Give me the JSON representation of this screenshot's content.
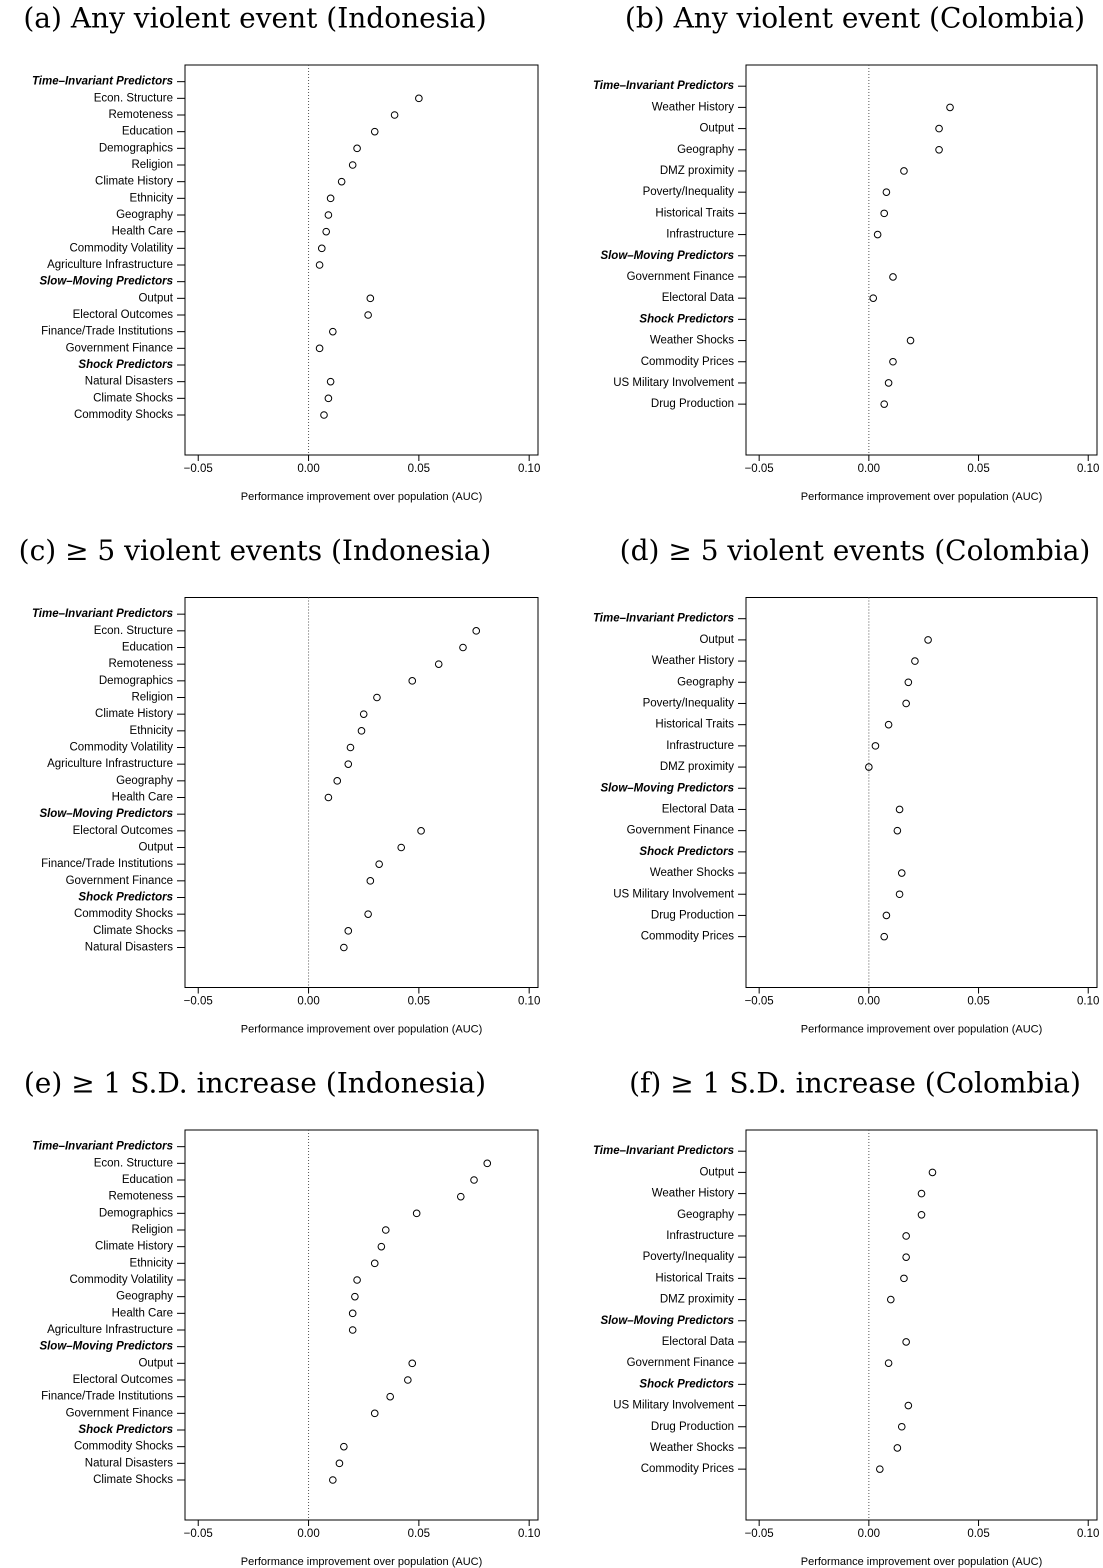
{
  "chart_data": [
    {
      "type": "dot",
      "title": "(a) Any violent event (Indonesia)",
      "xlabel": "Performance improvement over population (AUC)",
      "xlim": [
        -0.056,
        0.104
      ],
      "xticks": [
        {
          "value": -0.05,
          "label": "−0.05"
        },
        {
          "value": 0,
          "label": "0.00"
        },
        {
          "value": 0.05,
          "label": "0.05"
        },
        {
          "value": 0.1,
          "label": "0.10"
        }
      ],
      "groups": [
        {
          "name": "Time–Invariant Predictors",
          "categories": [
            "Econ. Structure",
            "Remoteness",
            "Education",
            "Demographics",
            "Religion",
            "Climate History",
            "Ethnicity",
            "Geography",
            "Health Care",
            "Commodity Volatility",
            "Agriculture Infrastructure"
          ],
          "values": [
            0.05,
            0.039,
            0.03,
            0.022,
            0.02,
            0.015,
            0.01,
            0.009,
            0.008,
            0.006,
            0.005
          ]
        },
        {
          "name": "Slow–Moving Predictors",
          "categories": [
            "Output",
            "Electoral Outcomes",
            "Finance/Trade Institutions",
            "Government Finance"
          ],
          "values": [
            0.028,
            0.027,
            0.011,
            0.005
          ]
        },
        {
          "name": "Shock Predictors",
          "categories": [
            "Natural Disasters",
            "Climate Shocks",
            "Commodity Shocks"
          ],
          "values": [
            0.01,
            0.009,
            0.007
          ]
        }
      ]
    },
    {
      "type": "dot",
      "title": "(b) Any violent event (Colombia)",
      "xlabel": "Performance improvement over population (AUC)",
      "xlim": [
        -0.056,
        0.104
      ],
      "xticks": [
        {
          "value": -0.05,
          "label": "−0.05"
        },
        {
          "value": 0,
          "label": "0.00"
        },
        {
          "value": 0.05,
          "label": "0.05"
        },
        {
          "value": 0.1,
          "label": "0.10"
        }
      ],
      "groups": [
        {
          "name": "Time–Invariant Predictors",
          "categories": [
            "Weather History",
            "Output",
            "Geography",
            "DMZ proximity",
            "Poverty/Inequality",
            "Historical Traits",
            "Infrastructure"
          ],
          "values": [
            0.037,
            0.032,
            0.032,
            0.016,
            0.008,
            0.007,
            0.004
          ]
        },
        {
          "name": "Slow–Moving Predictors",
          "categories": [
            "Government Finance",
            "Electoral Data"
          ],
          "values": [
            0.011,
            0.002
          ]
        },
        {
          "name": "Shock Predictors",
          "categories": [
            "Weather Shocks",
            "Commodity Prices",
            "US Military Involvement",
            "Drug Production"
          ],
          "values": [
            0.019,
            0.011,
            0.009,
            0.007
          ]
        }
      ]
    },
    {
      "type": "dot",
      "title": "(c) ≥ 5 violent events (Indonesia)",
      "xlabel": "Performance improvement over population (AUC)",
      "xlim": [
        -0.056,
        0.104
      ],
      "xticks": [
        {
          "value": -0.05,
          "label": "−0.05"
        },
        {
          "value": 0,
          "label": "0.00"
        },
        {
          "value": 0.05,
          "label": "0.05"
        },
        {
          "value": 0.1,
          "label": "0.10"
        }
      ],
      "groups": [
        {
          "name": "Time–Invariant Predictors",
          "categories": [
            "Econ. Structure",
            "Education",
            "Remoteness",
            "Demographics",
            "Religion",
            "Climate History",
            "Ethnicity",
            "Commodity Volatility",
            "Agriculture Infrastructure",
            "Geography",
            "Health Care"
          ],
          "values": [
            0.076,
            0.07,
            0.059,
            0.047,
            0.031,
            0.025,
            0.024,
            0.019,
            0.018,
            0.013,
            0.009
          ]
        },
        {
          "name": "Slow–Moving Predictors",
          "categories": [
            "Electoral Outcomes",
            "Output",
            "Finance/Trade Institutions",
            "Government Finance"
          ],
          "values": [
            0.051,
            0.042,
            0.032,
            0.028
          ]
        },
        {
          "name": "Shock Predictors",
          "categories": [
            "Commodity Shocks",
            "Climate Shocks",
            "Natural Disasters"
          ],
          "values": [
            0.027,
            0.018,
            0.016
          ]
        }
      ]
    },
    {
      "type": "dot",
      "title": "(d) ≥ 5 violent events (Colombia)",
      "xlabel": "Performance improvement over population (AUC)",
      "xlim": [
        -0.056,
        0.104
      ],
      "xticks": [
        {
          "value": -0.05,
          "label": "−0.05"
        },
        {
          "value": 0,
          "label": "0.00"
        },
        {
          "value": 0.05,
          "label": "0.05"
        },
        {
          "value": 0.1,
          "label": "0.10"
        }
      ],
      "groups": [
        {
          "name": "Time–Invariant Predictors",
          "categories": [
            "Output",
            "Weather History",
            "Geography",
            "Poverty/Inequality",
            "Historical Traits",
            "Infrastructure",
            "DMZ proximity"
          ],
          "values": [
            0.027,
            0.021,
            0.018,
            0.017,
            0.009,
            0.003,
            0.0
          ]
        },
        {
          "name": "Slow–Moving Predictors",
          "categories": [
            "Electoral Data",
            "Government Finance"
          ],
          "values": [
            0.014,
            0.013
          ]
        },
        {
          "name": "Shock Predictors",
          "categories": [
            "Weather Shocks",
            "US Military Involvement",
            "Drug Production",
            "Commodity Prices"
          ],
          "values": [
            0.015,
            0.014,
            0.008,
            0.007
          ]
        }
      ]
    },
    {
      "type": "dot",
      "title": "(e) ≥ 1 S.D. increase (Indonesia)",
      "xlabel": "Performance improvement over population (AUC)",
      "xlim": [
        -0.056,
        0.104
      ],
      "xticks": [
        {
          "value": -0.05,
          "label": "−0.05"
        },
        {
          "value": 0,
          "label": "0.00"
        },
        {
          "value": 0.05,
          "label": "0.05"
        },
        {
          "value": 0.1,
          "label": "0.10"
        }
      ],
      "groups": [
        {
          "name": "Time–Invariant Predictors",
          "categories": [
            "Econ. Structure",
            "Education",
            "Remoteness",
            "Demographics",
            "Religion",
            "Climate History",
            "Ethnicity",
            "Commodity Volatility",
            "Geography",
            "Health Care",
            "Agriculture Infrastructure"
          ],
          "values": [
            0.081,
            0.075,
            0.069,
            0.049,
            0.035,
            0.033,
            0.03,
            0.022,
            0.021,
            0.02,
            0.02
          ]
        },
        {
          "name": "Slow–Moving Predictors",
          "categories": [
            "Output",
            "Electoral Outcomes",
            "Finance/Trade Institutions",
            "Government Finance"
          ],
          "values": [
            0.047,
            0.045,
            0.037,
            0.03
          ]
        },
        {
          "name": "Shock Predictors",
          "categories": [
            "Commodity Shocks",
            "Natural Disasters",
            "Climate Shocks"
          ],
          "values": [
            0.016,
            0.014,
            0.011
          ]
        }
      ]
    },
    {
      "type": "dot",
      "title": "(f) ≥ 1 S.D. increase (Colombia)",
      "xlabel": "Performance improvement over population (AUC)",
      "xlim": [
        -0.056,
        0.104
      ],
      "xticks": [
        {
          "value": -0.05,
          "label": "−0.05"
        },
        {
          "value": 0,
          "label": "0.00"
        },
        {
          "value": 0.05,
          "label": "0.05"
        },
        {
          "value": 0.1,
          "label": "0.10"
        }
      ],
      "groups": [
        {
          "name": "Time–Invariant Predictors",
          "categories": [
            "Output",
            "Weather History",
            "Geography",
            "Infrastructure",
            "Poverty/Inequality",
            "Historical Traits",
            "DMZ proximity"
          ],
          "values": [
            0.029,
            0.024,
            0.024,
            0.017,
            0.017,
            0.016,
            0.01
          ]
        },
        {
          "name": "Slow–Moving Predictors",
          "categories": [
            "Electoral Data",
            "Government Finance"
          ],
          "values": [
            0.017,
            0.009
          ]
        },
        {
          "name": "Shock Predictors",
          "categories": [
            "US Military Involvement",
            "Drug Production",
            "Weather Shocks",
            "Commodity Prices"
          ],
          "values": [
            0.018,
            0.015,
            0.013,
            0.005
          ]
        }
      ]
    }
  ]
}
